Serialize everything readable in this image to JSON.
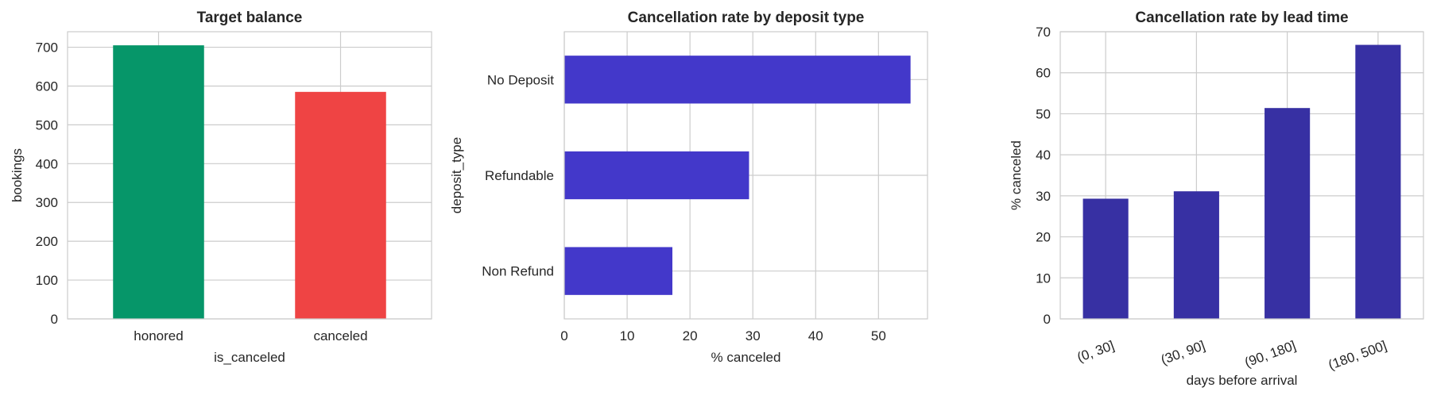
{
  "chart_data": [
    {
      "type": "bar",
      "title": "Target balance",
      "xlabel": "is_canceled",
      "ylabel": "bookings",
      "categories": [
        "honored",
        "canceled"
      ],
      "values": [
        705,
        585
      ],
      "colors": [
        "#069669",
        "#ef4444"
      ],
      "ylim": [
        0,
        740
      ],
      "yticks": [
        0,
        100,
        200,
        300,
        400,
        500,
        600,
        700
      ],
      "grid": true
    },
    {
      "type": "bar",
      "orientation": "horizontal",
      "title": "Cancellation rate by deposit type",
      "xlabel": "% canceled",
      "ylabel": "deposit_type",
      "categories": [
        "No Deposit",
        "Refundable",
        "Non Refund"
      ],
      "values": [
        55.1,
        29.4,
        17.2
      ],
      "colors": [
        "#4338ca"
      ],
      "xlim": [
        0,
        57.8
      ],
      "xticks": [
        0,
        10,
        20,
        30,
        40,
        50
      ],
      "grid": true
    },
    {
      "type": "bar",
      "title": "Cancellation rate by lead time",
      "xlabel": "days before arrival",
      "ylabel": "% canceled",
      "categories": [
        "(0, 30]",
        "(30, 90]",
        "(90, 180]",
        "(180, 500]"
      ],
      "values": [
        29.3,
        31.1,
        51.4,
        66.8
      ],
      "colors": [
        "#3730a3"
      ],
      "ylim": [
        0,
        70
      ],
      "yticks": [
        0,
        10,
        20,
        30,
        40,
        50,
        60,
        70
      ],
      "grid": true
    }
  ]
}
